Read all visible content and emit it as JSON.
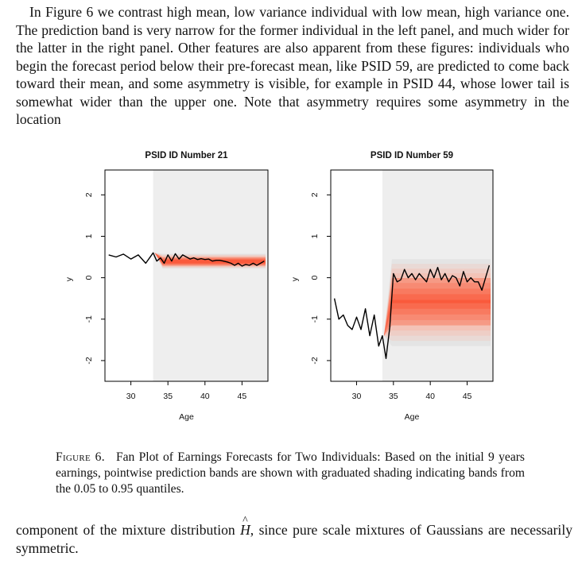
{
  "text": {
    "top_paragraph": "In Figure 6 we contrast high mean, low variance individual with low mean, high variance one. The prediction band is very narrow for the former individual in the left panel, and much wider for the latter in the right panel. Other features are also apparent from these figures: individuals who begin the forecast period below their pre-forecast mean, like PSID 59, are predicted to come back toward their mean, and some asymmetry is visible, for example in PSID 44, whose lower tail is somewhat wider than the upper one. Note that asymmetry requires some asymmetry in the location",
    "bottom_before": "component of the mixture distribution ",
    "bottom_symbol": "H",
    "bottom_after": ", since pure scale mixtures of Gaussians are necessarily symmetric."
  },
  "caption": {
    "label": "Figure 6.",
    "text": "Fan Plot of Earnings Forecasts for Two Individuals: Based on the initial 9 years earnings, pointwise prediction bands are shown with graduated shading indicating bands from the 0.05 to 0.95 quantiles."
  },
  "colors": {
    "forecast_shade": "#eeeeee",
    "fan_core": "#fa5a3c",
    "fan_outer": "#dcdcdc",
    "series_line": "#000000"
  },
  "chart_data": [
    {
      "type": "area",
      "title": "PSID ID Number 21",
      "xlabel": "Age",
      "ylabel": "y",
      "xlim": [
        26.5,
        48.5
      ],
      "ylim": [
        -2.5,
        2.6
      ],
      "xticks": [
        30,
        35,
        40,
        45
      ],
      "yticks": [
        -2,
        -1,
        0,
        1,
        2
      ],
      "forecast_start": 33,
      "history": {
        "x": [
          27,
          28,
          29,
          30,
          31,
          32,
          33
        ],
        "y": [
          0.55,
          0.5,
          0.57,
          0.45,
          0.55,
          0.35,
          0.6
        ]
      },
      "forecast_path": {
        "x": [
          33,
          33.5,
          34,
          34.5,
          35,
          35.5,
          36,
          36.5,
          37,
          37.5,
          38,
          38.5,
          39,
          39.5,
          40,
          40.5,
          41,
          41.5,
          42,
          42.5,
          43,
          43.5,
          44,
          44.5,
          45,
          45.5,
          46,
          46.5,
          47,
          47.5,
          48
        ],
        "y": [
          0.6,
          0.4,
          0.48,
          0.35,
          0.55,
          0.4,
          0.58,
          0.45,
          0.55,
          0.5,
          0.45,
          0.48,
          0.44,
          0.46,
          0.44,
          0.45,
          0.4,
          0.42,
          0.42,
          0.4,
          0.38,
          0.35,
          0.3,
          0.35,
          0.28,
          0.32,
          0.3,
          0.35,
          0.3,
          0.35,
          0.4
        ]
      },
      "bands": [
        {
          "quantiles": [
            0.05,
            0.95
          ],
          "lower": 0.22,
          "upper": 0.58
        },
        {
          "quantiles": [
            0.25,
            0.75
          ],
          "lower": 0.3,
          "upper": 0.48
        }
      ]
    },
    {
      "type": "area",
      "title": "PSID ID Number 59",
      "xlabel": "Age",
      "ylabel": "y",
      "xlim": [
        26.5,
        48.5
      ],
      "ylim": [
        -2.5,
        2.6
      ],
      "xticks": [
        30,
        35,
        40,
        45
      ],
      "yticks": [
        -2,
        -1,
        0,
        1,
        2
      ],
      "forecast_start": 33.5,
      "history": {
        "x": [
          27,
          27.6,
          28.2,
          28.8,
          29.4,
          30,
          30.6,
          31.2,
          31.8,
          32.4,
          33,
          33.5
        ],
        "y": [
          -0.5,
          -1.0,
          -0.9,
          -1.15,
          -1.25,
          -0.95,
          -1.25,
          -0.75,
          -1.4,
          -0.9,
          -1.65,
          -1.4
        ]
      },
      "forecast_path": {
        "x": [
          33.5,
          34,
          34.5,
          35,
          35.5,
          36,
          36.5,
          37,
          37.5,
          38,
          38.5,
          39,
          39.5,
          40,
          40.5,
          41,
          41.5,
          42,
          42.5,
          43,
          43.5,
          44,
          44.5,
          45,
          45.5,
          46,
          46.5,
          47,
          47.5,
          48
        ],
        "y": [
          -1.4,
          -1.95,
          -1.2,
          0.1,
          -0.1,
          -0.05,
          0.2,
          0.0,
          0.1,
          -0.05,
          0.1,
          0.0,
          -0.1,
          0.2,
          0.0,
          0.25,
          -0.05,
          0.1,
          -0.1,
          0.05,
          0.0,
          -0.2,
          0.15,
          -0.1,
          0.0,
          -0.1,
          -0.1,
          -0.3,
          0.0,
          0.3
        ]
      },
      "bands": [
        {
          "quantiles": [
            0.05,
            0.95
          ],
          "lower": -1.65,
          "upper": 0.45
        },
        {
          "quantiles": [
            0.25,
            0.75
          ],
          "lower": -1.05,
          "upper": -0.1
        }
      ]
    }
  ]
}
